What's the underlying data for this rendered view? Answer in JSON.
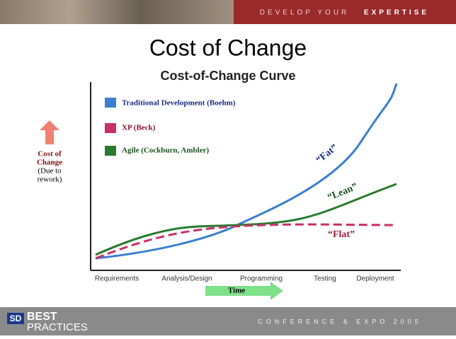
{
  "header": {
    "tagline_left": "DEVELOP YOUR",
    "tagline_right": "EXPERTISE"
  },
  "title": "Cost of Change",
  "figure": {
    "title": "Cost-of-Change Curve",
    "legend": [
      "Traditional Development (Boehm)",
      "XP (Beck)",
      "Agile (Cockburn, Ambler)"
    ],
    "y_label": [
      "Cost of",
      "Change",
      "(Due to",
      "rework)"
    ],
    "x_categories": [
      "Requirements",
      "Analysis/Design",
      "Programming",
      "Testing",
      "Deployment"
    ],
    "x_label": "Time",
    "annotations": [
      "“Fat”",
      "“Lean”",
      "“Flat”"
    ]
  },
  "footer": {
    "logo_sd": "SD",
    "logo_best": "BEST",
    "logo_practices": "PRACTICES",
    "event": "CONFERENCE & EXPO 2005"
  }
}
